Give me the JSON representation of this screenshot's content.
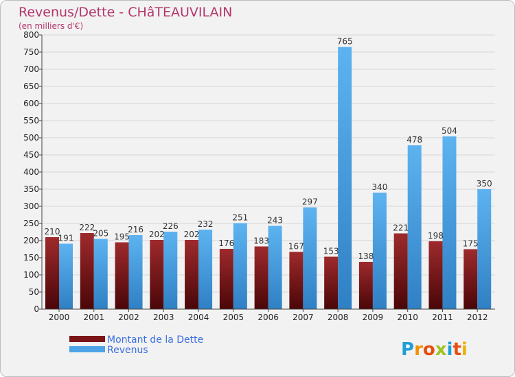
{
  "chart_data": {
    "type": "bar",
    "title": "Revenus/Dette - CHâTEAUVILAIN",
    "subtitle": "(en milliers d'€)",
    "xlabel": "",
    "ylabel": "",
    "ylim": [
      0,
      800
    ],
    "ytick_step": 50,
    "grid": true,
    "legend_position": "bottom-left",
    "categories": [
      "2000",
      "2001",
      "2002",
      "2003",
      "2004",
      "2005",
      "2006",
      "2007",
      "2008",
      "2009",
      "2010",
      "2011",
      "2012"
    ],
    "series": [
      {
        "name": "Montant de la Dette",
        "color": "#7a1416",
        "values": [
          210,
          222,
          195,
          202,
          202,
          176,
          183,
          167,
          153,
          138,
          221,
          198,
          175
        ]
      },
      {
        "name": "Revenus",
        "color": "#4ea3e6",
        "values": [
          191,
          205,
          216,
          226,
          232,
          251,
          243,
          297,
          765,
          340,
          478,
          504,
          350
        ]
      }
    ]
  },
  "logo": {
    "text": "Proxiti",
    "letter_colors": [
      "#1f9fd6",
      "#f39200",
      "#e84e0f",
      "#9fc31f",
      "#1f9fd6",
      "#e84e0f",
      "#e9b400"
    ]
  }
}
